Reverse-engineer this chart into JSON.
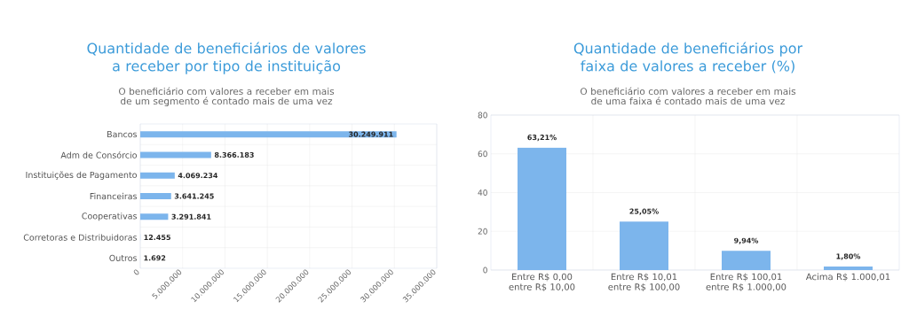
{
  "chart_data": [
    {
      "type": "bar",
      "orientation": "horizontal",
      "title": "Quantidade de beneficiários de valores a receber por tipo de instituição",
      "subtitle": "O beneficiário com valores a receber em mais de um segmento é contado mais de uma vez",
      "categories": [
        "Bancos",
        "Adm de Consórcio",
        "Instituições de Pagamento",
        "Financeiras",
        "Cooperativas",
        "Corretoras e Distribuidoras",
        "Outros"
      ],
      "values": [
        30249911,
        8366183,
        4069234,
        3641245,
        3291841,
        12455,
        1692
      ],
      "value_labels": [
        "30.249.911",
        "8.366.183",
        "4.069.234",
        "3.641.245",
        "3.291.841",
        "12.455",
        "1.692"
      ],
      "color": "#7cb5ec",
      "xlim": [
        0,
        35000000
      ],
      "xticks": [
        0,
        {
          "value": 5000000,
          "label": "5.000.000"
        },
        {
          "value": 10000000,
          "label": "10.000.000"
        },
        {
          "value": 15000000,
          "label": "15.000.000"
        },
        {
          "value": 20000000,
          "label": "20.000.000"
        },
        {
          "value": 25000000,
          "label": "25.000.000"
        },
        {
          "value": 30000000,
          "label": "30.000.000"
        },
        {
          "value": 35000000,
          "label": "35.000.000"
        }
      ],
      "grid": true
    },
    {
      "type": "bar",
      "title": "Quantidade de beneficiários por faixa de valores a receber (%)",
      "subtitle": "O beneficiário com valores a receber em mais de uma faixa é contado mais de uma vez",
      "categories": [
        "Entre R$ 0,00 entre R$ 10,00",
        "Entre R$ 10,01 entre R$ 100,00",
        "Entre R$ 100,01 entre R$ 1.000,00",
        "Acima R$ 1.000,01"
      ],
      "values": [
        63.21,
        25.05,
        9.94,
        1.8
      ],
      "value_labels": [
        "63,21%",
        "25,05%",
        "9,94%",
        "1,80%"
      ],
      "color": "#7cb5ec",
      "ylim": [
        0,
        80
      ],
      "yticks": [
        0,
        20,
        40,
        60,
        80
      ],
      "grid": true
    }
  ]
}
